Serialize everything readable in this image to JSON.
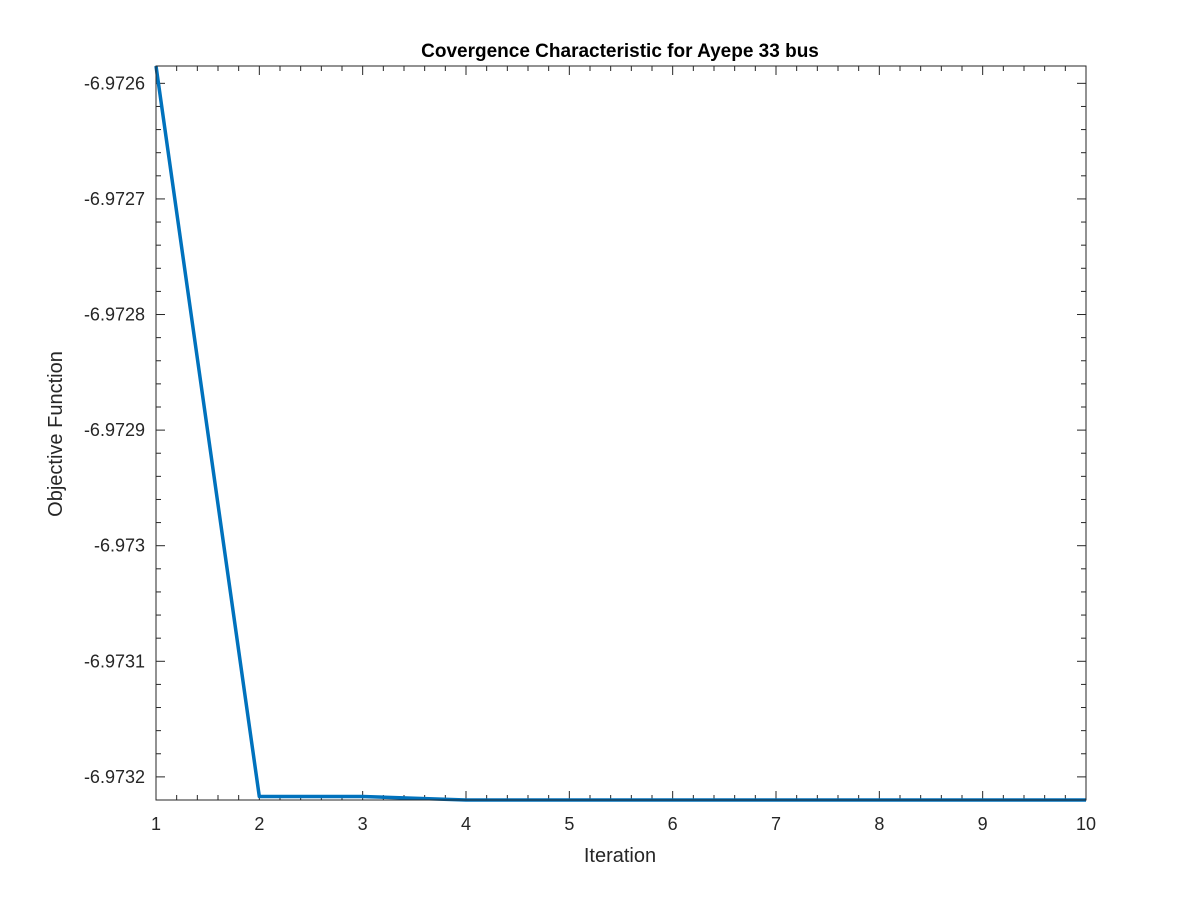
{
  "chart_data": {
    "type": "line",
    "title": "Covergence Characteristic for Ayepe 33 bus",
    "xlabel": "Iteration",
    "ylabel": "Objective Function",
    "xlim": [
      1,
      10
    ],
    "ylim": [
      -6.97322,
      -6.972585
    ],
    "xticks": [
      1,
      2,
      3,
      4,
      5,
      6,
      7,
      8,
      9,
      10
    ],
    "xtick_labels": [
      "1",
      "2",
      "3",
      "4",
      "5",
      "6",
      "7",
      "8",
      "9",
      "10"
    ],
    "yticks": [
      -6.9732,
      -6.9731,
      -6.973,
      -6.9729,
      -6.9728,
      -6.9727,
      -6.9726
    ],
    "ytick_labels": [
      "-6.9732",
      "-6.9731",
      "-6.973",
      "-6.9729",
      "-6.9728",
      "-6.9727",
      "-6.9726"
    ],
    "grid": false,
    "legend": "none",
    "series": [
      {
        "color": "#0072BD",
        "x": [
          1,
          2,
          3,
          4,
          5,
          6,
          7,
          8,
          9,
          10
        ],
        "y": [
          -6.972585,
          -6.973217,
          -6.973217,
          -6.97322,
          -6.97322,
          -6.97322,
          -6.97322,
          -6.97322,
          -6.97322,
          -6.97322
        ]
      }
    ]
  }
}
